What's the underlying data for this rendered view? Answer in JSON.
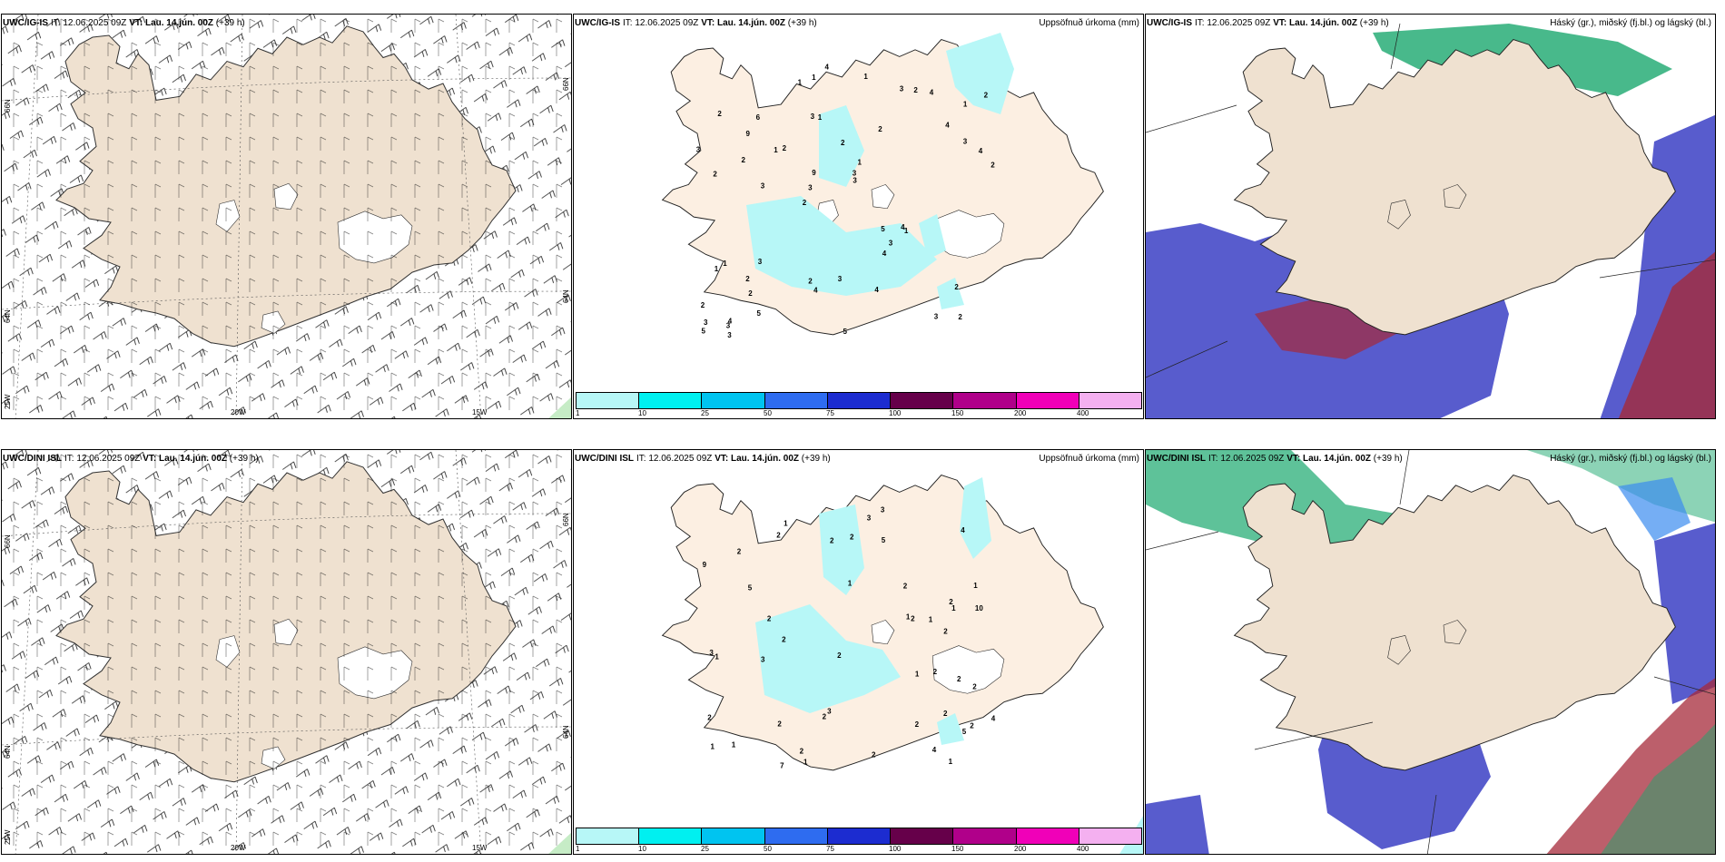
{
  "panels": [
    {
      "model": "UWC/IG-IS",
      "it_label": "IT:",
      "it_value": "12.06.2025 09Z",
      "vt_label": "VT:",
      "vt_value": "Lau. 14.jún. 00Z",
      "lead": "(+39 h)",
      "right_title": "",
      "kind": "wind"
    },
    {
      "model": "UWC/IG-IS",
      "it_label": "IT:",
      "it_value": "12.06.2025 09Z",
      "vt_label": "VT:",
      "vt_value": "Lau. 14.jún. 00Z",
      "lead": "(+39 h)",
      "right_title": "Uppsöfnuð úrkoma (mm)",
      "kind": "precip"
    },
    {
      "model": "UWC/IG-IS",
      "it_label": "IT:",
      "it_value": "12.06.2025 09Z",
      "vt_label": "VT:",
      "vt_value": "Lau. 14.jún. 00Z",
      "lead": "(+39 h)",
      "right_title": "Háský (gr.), miðský (fj.bl.) og lágský (bl.)",
      "kind": "cloud"
    },
    {
      "model": "UWC/DINI ISL",
      "it_label": "IT:",
      "it_value": "12.06.2025 09Z",
      "vt_label": "VT:",
      "vt_value": "Lau. 14.jún. 00Z",
      "lead": "(+39 h)",
      "right_title": "",
      "kind": "wind"
    },
    {
      "model": "UWC/DINI ISL",
      "it_label": "IT:",
      "it_value": "12.06.2025 09Z",
      "vt_label": "VT:",
      "vt_value": "Lau. 14.jún. 00Z",
      "lead": "(+39 h)",
      "right_title": "Uppsöfnuð úrkoma (mm)",
      "kind": "precip"
    },
    {
      "model": "UWC/DINI ISL",
      "it_label": "IT:",
      "it_value": "12.06.2025 09Z",
      "vt_label": "VT:",
      "vt_value": "Lau. 14.jún. 00Z",
      "lead": "(+39 h)",
      "right_title": "Háský (gr.), miðský (fj.bl.) og lágský (bl.)",
      "kind": "cloud"
    }
  ],
  "wind_axis_labels": {
    "lon_20": "20W",
    "lon_15": "15W",
    "lat_66": "66N",
    "lat_64": "64N",
    "lat_25w": "25W",
    "lat_66_right": "66N",
    "lat_64_right": "64N"
  },
  "precip_scale": {
    "ticks": [
      "1",
      "10",
      "25",
      "50",
      "75",
      "100",
      "150",
      "200",
      "400"
    ],
    "colors": [
      "#b7f7f7",
      "#00f0f0",
      "#00c4f0",
      "#2e6cf0",
      "#1c2cd0",
      "#66004a",
      "#b0008a",
      "#f000b8",
      "#f4b0f0"
    ]
  },
  "precip_values_top": [
    "2",
    "2",
    "1",
    "2",
    "2",
    "4",
    "3",
    "2",
    "1",
    "2",
    "2",
    "2",
    "1",
    "1",
    "1",
    "2",
    "1",
    "2",
    "5",
    "3",
    "3",
    "2",
    "9",
    "6",
    "3",
    "3",
    "3",
    "2",
    "4",
    "5",
    "1",
    "2",
    "4",
    "5",
    "4",
    "3",
    "3",
    "4",
    "3",
    "1",
    "4",
    "2",
    "3",
    "4",
    "2",
    "3",
    "5",
    "3",
    "4",
    "4",
    "3",
    "3",
    "9",
    "2",
    "3",
    "1",
    "1"
  ],
  "precip_values_bottom": [
    "2",
    "1",
    "2",
    "1",
    "1",
    "1",
    "2",
    "2",
    "4",
    "5",
    "10",
    "9",
    "2",
    "1",
    "2",
    "2",
    "5",
    "2",
    "3",
    "1",
    "3",
    "1",
    "2",
    "1",
    "2",
    "2",
    "3",
    "5",
    "2",
    "4",
    "3",
    "2",
    "7",
    "2",
    "2",
    "4",
    "2",
    "2",
    "1",
    "2",
    "2",
    "1",
    "2",
    "2",
    "2",
    "1",
    "1",
    "3"
  ],
  "colors": {
    "land": "#efe1d0",
    "land_top_precip": "#fcefe2",
    "coast": "#333333",
    "precip_light": "#b7f7f7",
    "low_cloud": "#3b3fc4",
    "mid_cloud": "#a52a3a",
    "high_cloud": "#1aa86e"
  }
}
